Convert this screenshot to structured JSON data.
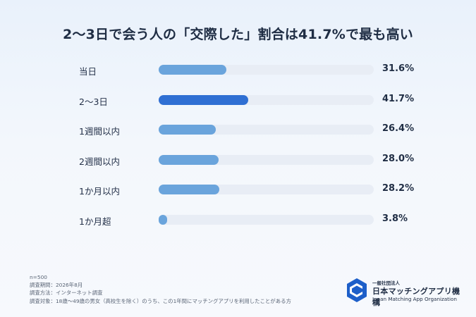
{
  "chart_data": {
    "type": "bar",
    "title": "2〜3日で会う人の「交際した」割合は41.7%で最も高い",
    "categories": [
      "当日",
      "2〜3日",
      "1週間以内",
      "2週間以内",
      "1か月以内",
      "1か月超"
    ],
    "values": [
      31.6,
      41.7,
      26.4,
      28.0,
      28.2,
      3.8
    ],
    "value_labels": [
      "31.6%",
      "41.7%",
      "26.4%",
      "28.0%",
      "28.2%",
      "3.8%"
    ],
    "unit": "%",
    "xlim": [
      0,
      100
    ],
    "highlight_index": 1,
    "colors": {
      "bar": "#6aa4dc",
      "highlight": "#2f6fd3",
      "track": "#e8edf5"
    }
  },
  "notes": {
    "n": "n=500",
    "period": "調査期間：2026年8月",
    "method": "調査方法：インターネット調査",
    "target": "調査対象：18歳〜49歳の男女（高校生を除く）のうち、この1年間にマッチングアプリを利用したことがある方"
  },
  "logo": {
    "small": "一般社団法人",
    "main": "日本マッチングアプリ機構",
    "english": "Japan Matching App Organization",
    "icon": "organization-logo-icon"
  }
}
